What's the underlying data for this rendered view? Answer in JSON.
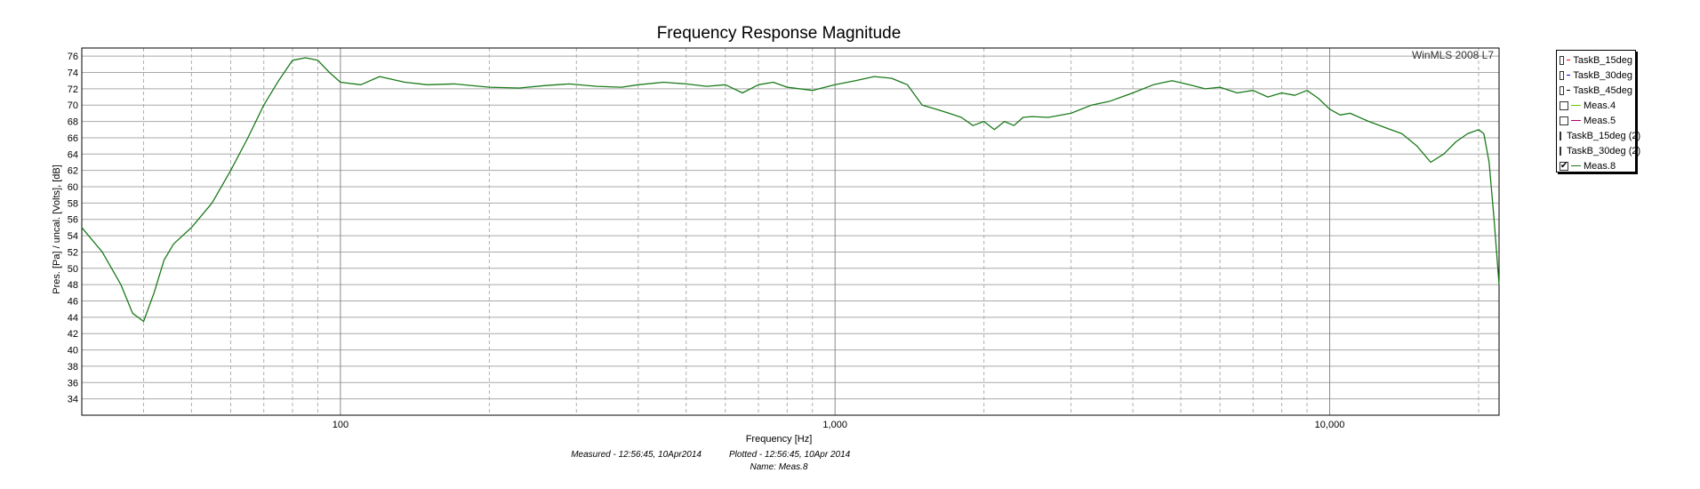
{
  "chart_data": {
    "type": "line",
    "title": "Frequency Response Magnitude",
    "xlabel": "Frequency [Hz]",
    "ylabel": "Pres. [Pa] / uncal. [Volts], [dB]",
    "x_scale": "log",
    "xlim": [
      30,
      22000
    ],
    "ylim": [
      32,
      77
    ],
    "grid": true,
    "legend_position": "right",
    "x_tick_labels": [
      "100",
      "1,000",
      "10,000"
    ],
    "y_ticks": [
      34,
      36,
      38,
      40,
      42,
      44,
      46,
      48,
      50,
      52,
      54,
      56,
      58,
      60,
      62,
      64,
      66,
      68,
      70,
      72,
      74,
      76
    ],
    "watermark": "WinMLS 2008 L7",
    "series": [
      {
        "name": "Meas.8",
        "color": "#1a7a1a",
        "x": [
          30,
          33,
          36,
          38,
          40,
          42,
          44,
          46,
          50,
          55,
          60,
          65,
          70,
          75,
          80,
          85,
          90,
          95,
          100,
          110,
          120,
          135,
          150,
          170,
          200,
          230,
          260,
          290,
          330,
          370,
          400,
          450,
          500,
          550,
          600,
          650,
          700,
          750,
          800,
          900,
          1000,
          1100,
          1200,
          1300,
          1400,
          1500,
          1600,
          1700,
          1800,
          1900,
          2000,
          2100,
          2200,
          2300,
          2400,
          2500,
          2700,
          3000,
          3300,
          3600,
          4000,
          4400,
          4800,
          5200,
          5600,
          6000,
          6500,
          7000,
          7500,
          8000,
          8500,
          9000,
          9500,
          10000,
          10500,
          11000,
          12000,
          13000,
          14000,
          15000,
          16000,
          17000,
          18000,
          19000,
          20000,
          20500,
          21000,
          21500,
          22000
        ],
        "y": [
          55,
          52,
          48,
          44.5,
          43.5,
          47,
          51,
          53,
          55,
          58,
          62,
          66,
          70,
          73,
          75.5,
          75.8,
          75.5,
          74,
          72.8,
          72.5,
          73.5,
          72.8,
          72.5,
          72.6,
          72.2,
          72.1,
          72.4,
          72.6,
          72.3,
          72.2,
          72.5,
          72.8,
          72.6,
          72.3,
          72.5,
          71.5,
          72.5,
          72.8,
          72.2,
          71.8,
          72.5,
          73,
          73.5,
          73.3,
          72.5,
          70,
          69.5,
          69,
          68.5,
          67.5,
          68,
          67,
          68,
          67.5,
          68.5,
          68.6,
          68.5,
          69,
          70,
          70.5,
          71.5,
          72.5,
          73,
          72.5,
          72,
          72.2,
          71.5,
          71.8,
          71,
          71.5,
          71.2,
          71.8,
          70.8,
          69.5,
          68.8,
          69,
          68,
          67.2,
          66.5,
          65,
          63,
          64,
          65.5,
          66.5,
          67,
          66.5,
          63,
          56,
          48
        ]
      }
    ]
  },
  "legend": {
    "items": [
      {
        "label": "TaskB_15deg",
        "color": "#ff0000",
        "checked": false
      },
      {
        "label": "TaskB_30deg",
        "color": "#0000ff",
        "checked": false
      },
      {
        "label": "TaskB_45deg",
        "color": "#000000",
        "checked": false
      },
      {
        "label": "Meas.4",
        "color": "#66cc00",
        "checked": false
      },
      {
        "label": "Meas.5",
        "color": "#aa0066",
        "checked": false
      },
      {
        "label": "TaskB_15deg (2)",
        "color": "#9999dd",
        "checked": false
      },
      {
        "label": "TaskB_30deg (2)",
        "color": "#006666",
        "checked": false
      },
      {
        "label": "Meas.8",
        "color": "#1a7a1a",
        "checked": true
      }
    ]
  },
  "footer": {
    "measured": "Measured - 12:56:45, 10Apr2014",
    "plotted": "Plotted - 12:56:45, 10Apr 2014",
    "name": "Name: Meas.8"
  }
}
